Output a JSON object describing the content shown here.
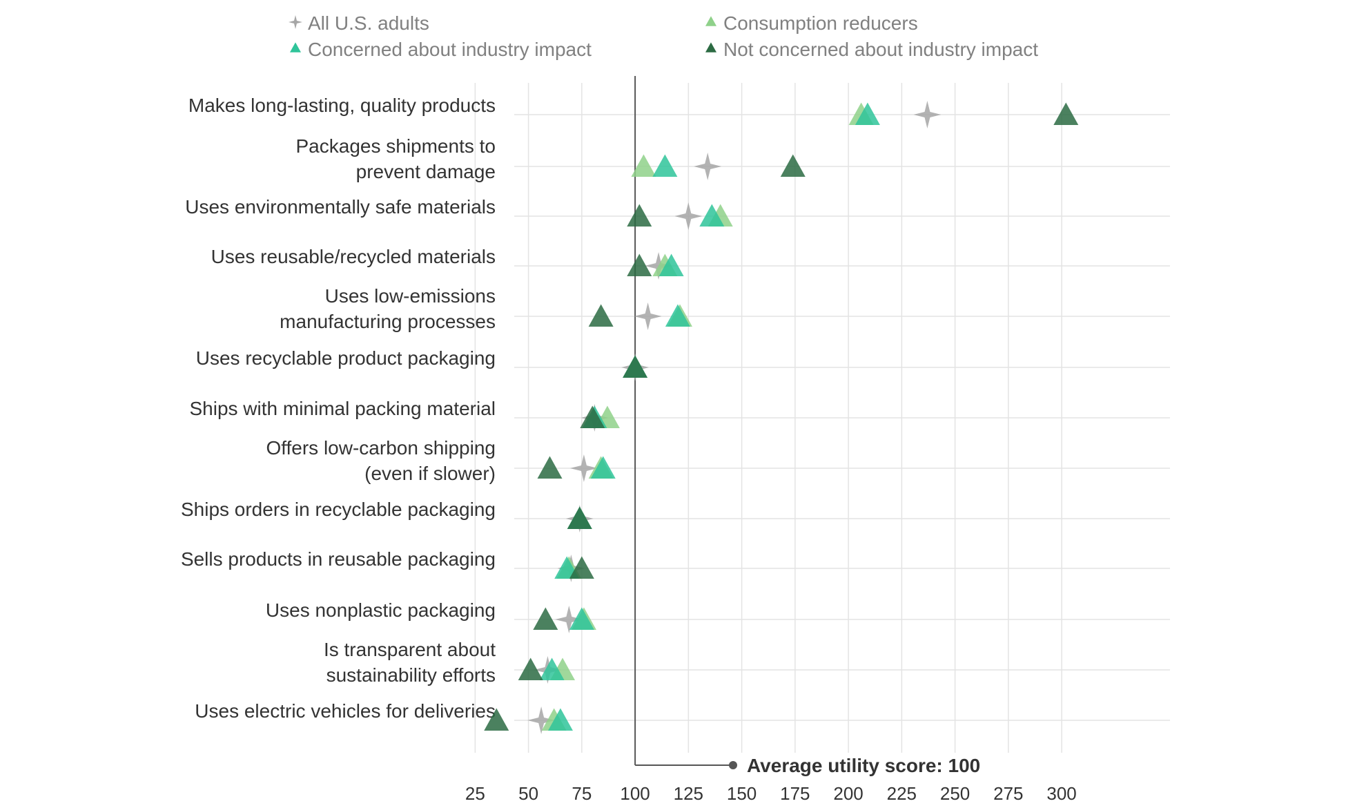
{
  "chart_data": {
    "type": "scatter",
    "title": "",
    "xlabel": "",
    "ylabel": "",
    "xlim": [
      10,
      310
    ],
    "xticks": [
      25,
      50,
      75,
      100,
      125,
      150,
      175,
      200,
      225,
      250,
      275,
      300
    ],
    "grid": true,
    "legend_position": "top",
    "reference_line": {
      "value": 100,
      "label": "Average utility score: 100"
    },
    "categories": [
      [
        "Makes long-lasting, quality products"
      ],
      [
        "Packages shipments to",
        "prevent damage"
      ],
      [
        "Uses environmentally safe materials"
      ],
      [
        "Uses reusable/recycled materials"
      ],
      [
        "Uses low-emissions",
        "manufacturing processes"
      ],
      [
        "Uses recyclable product packaging"
      ],
      [
        "Ships with minimal packing material"
      ],
      [
        "Offers low-carbon shipping",
        "(even if slower)"
      ],
      [
        "Ships orders in recyclable packaging"
      ],
      [
        "Sells products in reusable packaging"
      ],
      [
        "Uses nonplastic packaging"
      ],
      [
        "Is transparent about",
        "sustainability efforts"
      ],
      [
        "Uses electric vehicles for deliveries"
      ]
    ],
    "series": [
      {
        "name": "All U.S. adults",
        "marker": "star",
        "color": "#a6a6a6",
        "values": [
          237,
          134,
          125,
          111,
          106,
          100,
          81,
          76,
          74,
          70,
          69,
          59,
          56
        ]
      },
      {
        "name": "Consumption reducers",
        "marker": "triangle",
        "color": "#8fd18a",
        "values": [
          206,
          104,
          140,
          114,
          121,
          100,
          87,
          84,
          74,
          69,
          76,
          66,
          62
        ]
      },
      {
        "name": "Concerned about industry impact",
        "marker": "triangle",
        "color": "#2fc49a",
        "values": [
          209,
          114,
          136,
          117,
          120,
          100,
          81,
          85,
          74,
          68,
          75,
          61,
          65
        ]
      },
      {
        "name": "Not concerned about industry impact",
        "marker": "triangle",
        "color": "#2c6b43",
        "values": [
          302,
          174,
          102,
          102,
          84,
          100,
          80,
          60,
          74,
          75,
          58,
          51,
          35
        ]
      }
    ]
  }
}
